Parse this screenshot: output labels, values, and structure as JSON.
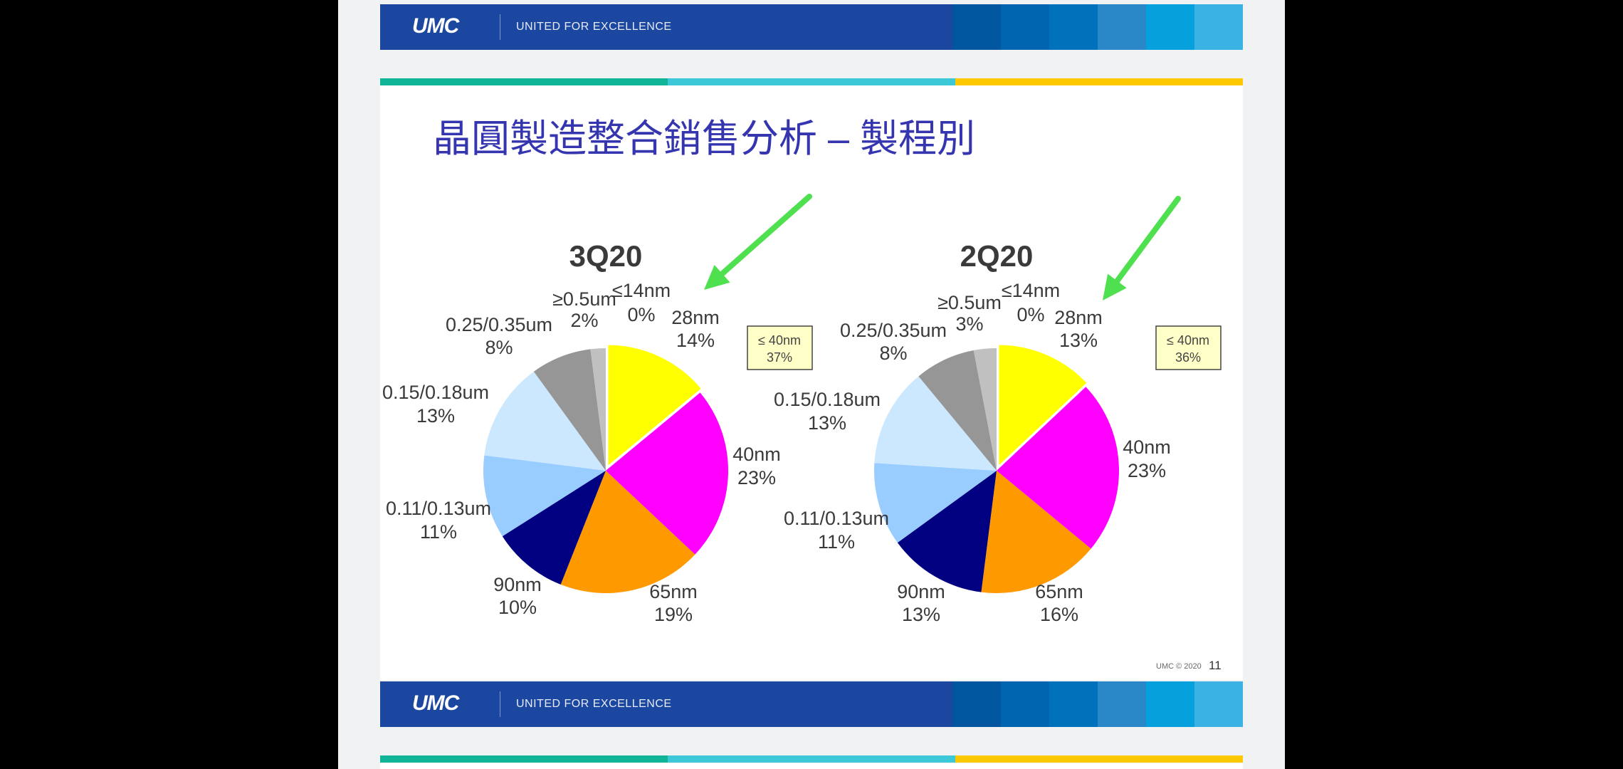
{
  "banner": {
    "logo": "UMC",
    "tagline": "UNITED FOR EXCELLENCE",
    "color": "#1b47a0",
    "block_colors": [
      "#0057a0",
      "#0065b0",
      "#0072bc",
      "#2a88c8",
      "#06a0dc",
      "#3ab3e4"
    ]
  },
  "strip_colors": [
    "#10b496",
    "#3cc8d6",
    "#fcc800"
  ],
  "title": "晶圓製造整合銷售分析 – 製程別",
  "footer": {
    "copyright": "UMC © 2020",
    "page": "11"
  },
  "chart_data": [
    {
      "type": "pie",
      "title": "3Q20",
      "categories": [
        "≤14nm",
        "28nm",
        "40nm",
        "65nm",
        "90nm",
        "0.11/0.13um",
        "0.15/0.18um",
        "0.25/0.35um",
        "≥0.5um"
      ],
      "values": [
        0,
        14,
        23,
        19,
        10,
        11,
        13,
        8,
        2
      ],
      "labels": [
        "0%",
        "14%",
        "23%",
        "19%",
        "10%",
        "11%",
        "13%",
        "8%",
        "2%"
      ],
      "colors": [
        "#ff0000",
        "#ffff00",
        "#ff00ff",
        "#ff9900",
        "#000080",
        "#99ccff",
        "#cce8ff",
        "#969696",
        "#c0c0c0"
      ],
      "exploded": "28nm",
      "annotation": {
        "line1": "≤ 40nm",
        "line2": "37%"
      }
    },
    {
      "type": "pie",
      "title": "2Q20",
      "categories": [
        "≤14nm",
        "28nm",
        "40nm",
        "65nm",
        "90nm",
        "0.11/0.13um",
        "0.15/0.18um",
        "0.25/0.35um",
        "≥0.5um"
      ],
      "values": [
        0,
        13,
        23,
        16,
        13,
        11,
        13,
        8,
        3
      ],
      "labels": [
        "0%",
        "13%",
        "23%",
        "16%",
        "13%",
        "11%",
        "13%",
        "8%",
        "3%"
      ],
      "colors": [
        "#ff0000",
        "#ffff00",
        "#ff00ff",
        "#ff9900",
        "#000080",
        "#99ccff",
        "#cce8ff",
        "#969696",
        "#c0c0c0"
      ],
      "exploded": "28nm",
      "annotation": {
        "line1": "≤ 40nm",
        "line2": "36%"
      }
    }
  ]
}
